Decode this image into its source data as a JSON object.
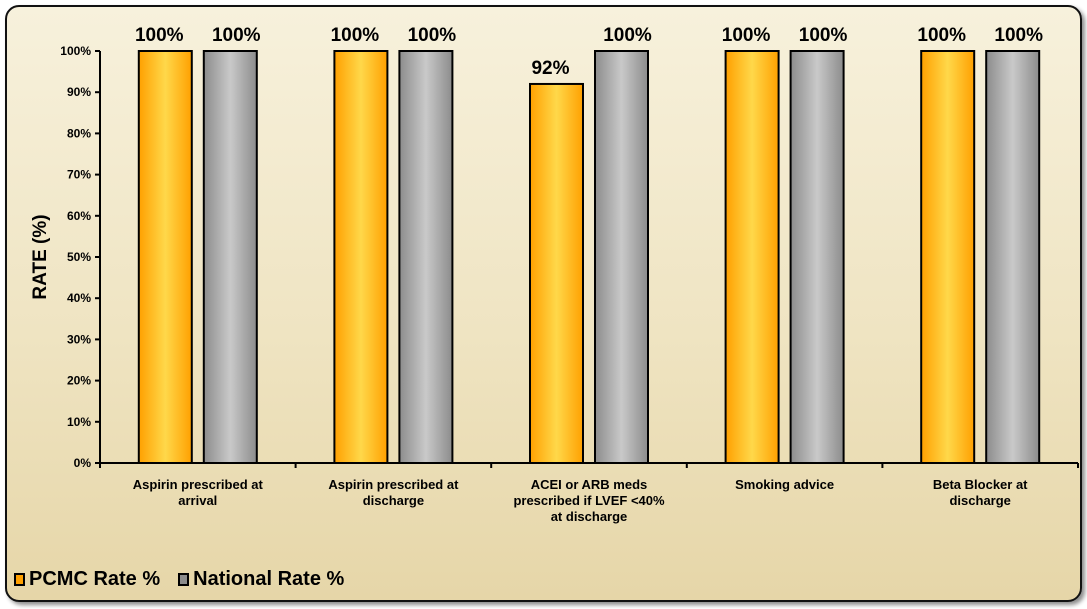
{
  "colors": {
    "pcmc": "#ffa000",
    "pcmc_light": "#ffd84a",
    "national": "#8c8c8c",
    "national_light": "#c9c9c9"
  },
  "chart_data": {
    "type": "bar",
    "title": "",
    "xlabel": "",
    "ylabel": "RATE (%)",
    "ylim": [
      0,
      100
    ],
    "yticks": [
      "0%",
      "10%",
      "20%",
      "30%",
      "40%",
      "50%",
      "60%",
      "70%",
      "80%",
      "90%",
      "100%"
    ],
    "categories": [
      [
        "Aspirin prescribed  at",
        "arrival"
      ],
      [
        "Aspirin prescribed  at",
        "discharge"
      ],
      [
        "ACEI or ARB meds",
        "prescribed if LVEF <40%",
        "at discharge"
      ],
      [
        "Smoking advice"
      ],
      [
        "Beta Blocker at",
        "discharge"
      ]
    ],
    "series": [
      {
        "name": "PCMC Rate %",
        "values": [
          100,
          100,
          92,
          100,
          100
        ],
        "labels": [
          "100%",
          "100%",
          "92%",
          "100%",
          "100%"
        ]
      },
      {
        "name": "National Rate %",
        "values": [
          100,
          100,
          100,
          100,
          100
        ],
        "labels": [
          "100%",
          "100%",
          "100%",
          "100%",
          "100%"
        ]
      }
    ],
    "grid": false,
    "legend_position": "bottom-left"
  }
}
